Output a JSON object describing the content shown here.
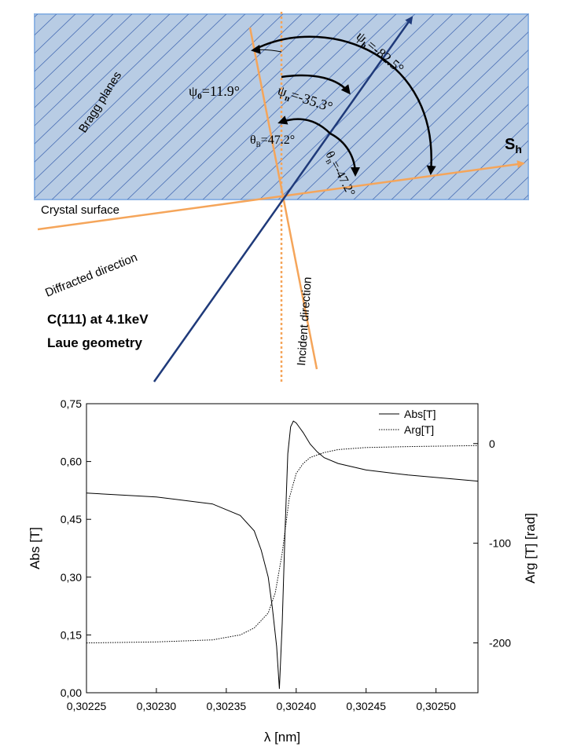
{
  "diagram": {
    "labels": {
      "bragg_planes": "Bragg planes",
      "crystal_surface": "Crystal surface",
      "diffracted_direction": "Diffracted direction",
      "incident_direction": "Incident direction",
      "title_line1": "C(111) at 4.1keV",
      "title_line2": "Laue geometry",
      "sh": "S",
      "sh_sub": "h"
    },
    "angles": {
      "psi0": "ψ",
      "psi0_sub": "0",
      "psi0_value": "=11.9°",
      "psin": "ψ",
      "psin_sub": "n",
      "psin_value": "=-35.3°",
      "psih": "ψ",
      "psih_sub": "h",
      "psih_value": "=-82.5°",
      "thetaB_left": "θ",
      "thetaB_left_sub": "B",
      "thetaB_left_value": "=47.2°",
      "thetaB_right": "θ",
      "thetaB_right_sub": "B",
      "thetaB_right_value": "=-47.2°"
    },
    "colors": {
      "crystal_fill": "#b8cce4",
      "crystal_border": "#8eb4e3",
      "hatch": "#4a6fb5",
      "orange": "#f5a55a",
      "navy": "#1f3a7a",
      "arrow": "#000000"
    }
  },
  "chart_data": {
    "type": "line",
    "xlabel": "λ [nm]",
    "ylabel": "Abs [T]",
    "y2label": "Arg [T] [rad]",
    "xlim": [
      0.30225,
      0.30253
    ],
    "ylim": [
      0.0,
      0.75
    ],
    "y2lim": [
      -250,
      40
    ],
    "x_ticks": [
      "0,30225",
      "0,30230",
      "0,30235",
      "0,30240",
      "0,30245",
      "0,30250"
    ],
    "x_tick_values": [
      0.30225,
      0.3023,
      0.30235,
      0.3024,
      0.30245,
      0.3025
    ],
    "y_ticks": [
      "0,00",
      "0,15",
      "0,30",
      "0,45",
      "0,60",
      "0,75"
    ],
    "y_tick_values": [
      0.0,
      0.15,
      0.3,
      0.45,
      0.6,
      0.75
    ],
    "y2_ticks": [
      "0",
      "-100",
      "-200"
    ],
    "y2_tick_values": [
      0,
      -100,
      -200
    ],
    "legend": {
      "position": "top-right",
      "entries": [
        "Abs[T]",
        "Arg[T]"
      ]
    },
    "series": [
      {
        "name": "Abs[T]",
        "axis": "left",
        "style": "solid",
        "x": [
          0.30225,
          0.3023,
          0.30234,
          0.30236,
          0.30237,
          0.302375,
          0.30238,
          0.302383,
          0.302386,
          0.302388,
          0.30239,
          0.302392,
          0.302394,
          0.302396,
          0.302398,
          0.3024,
          0.302405,
          0.30241,
          0.302415,
          0.30242,
          0.30243,
          0.30245,
          0.30248,
          0.30253
        ],
        "values": [
          0.518,
          0.508,
          0.49,
          0.46,
          0.42,
          0.37,
          0.3,
          0.22,
          0.12,
          0.01,
          0.18,
          0.42,
          0.62,
          0.69,
          0.705,
          0.7,
          0.675,
          0.645,
          0.625,
          0.61,
          0.595,
          0.578,
          0.565,
          0.549
        ]
      },
      {
        "name": "Arg[T]",
        "axis": "right",
        "style": "dotted",
        "x": [
          0.30225,
          0.3023,
          0.30234,
          0.30236,
          0.30237,
          0.30238,
          0.302385,
          0.30239,
          0.302395,
          0.3024,
          0.302405,
          0.30241,
          0.30242,
          0.30243,
          0.30245,
          0.30248,
          0.30253
        ],
        "values": [
          -200,
          -199,
          -197,
          -192,
          -185,
          -170,
          -150,
          -110,
          -55,
          -30,
          -20,
          -14,
          -9,
          -6,
          -4,
          -3,
          -2
        ]
      }
    ]
  }
}
